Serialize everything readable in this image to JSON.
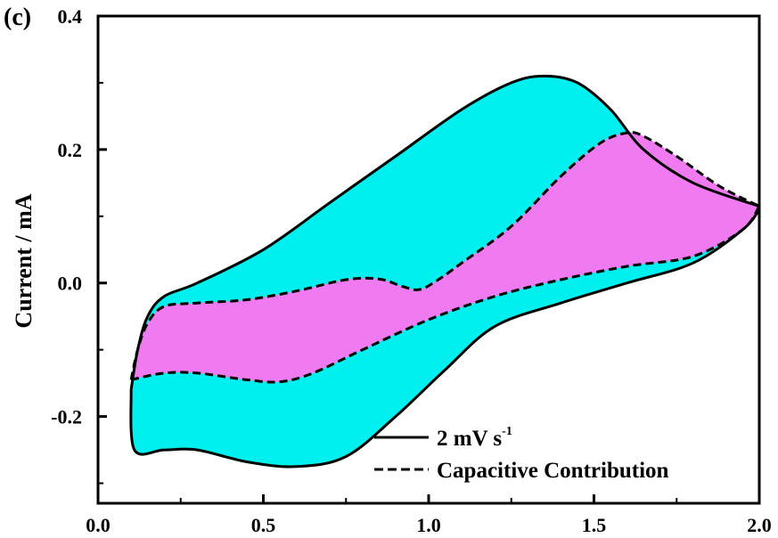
{
  "panel_label": "(c)",
  "chart_data": {
    "type": "area",
    "title": "",
    "xlabel": "",
    "ylabel": "Current / mA",
    "xlim": [
      0.0,
      2.0
    ],
    "ylim": [
      -0.33,
      0.4
    ],
    "x_ticks": [
      "0.0",
      "0.5",
      "1.0",
      "1.5",
      "2.0"
    ],
    "y_ticks": [
      "-0.2",
      "0.0",
      "0.2",
      "0.4"
    ],
    "grid": false,
    "legend_position": "bottom-right",
    "colors": {
      "total_fill": "#00f0f0",
      "capacitive_fill": "#f07af0",
      "line": "#000000"
    },
    "series": [
      {
        "name": "2 mV s⁻¹",
        "label_main": "2 mV s",
        "label_exponent": "-1",
        "style": "solid",
        "fill": "cyan",
        "upper": {
          "x": [
            0.1,
            0.12,
            0.15,
            0.2,
            0.3,
            0.5,
            0.7,
            0.9,
            1.1,
            1.25,
            1.35,
            1.45,
            1.55,
            1.65,
            1.8,
            2.0
          ],
          "y": [
            -0.16,
            -0.1,
            -0.05,
            -0.02,
            0.0,
            0.05,
            0.12,
            0.19,
            0.26,
            0.3,
            0.31,
            0.3,
            0.26,
            0.2,
            0.15,
            0.115
          ]
        },
        "lower": {
          "x": [
            0.1,
            0.11,
            0.2,
            0.3,
            0.45,
            0.6,
            0.75,
            0.9,
            1.05,
            1.2,
            1.4,
            1.6,
            1.8,
            1.95,
            2.0
          ],
          "y": [
            -0.16,
            -0.25,
            -0.25,
            -0.25,
            -0.268,
            -0.275,
            -0.26,
            -0.2,
            -0.13,
            -0.065,
            -0.03,
            0.0,
            0.03,
            0.08,
            0.11
          ]
        }
      },
      {
        "name": "Capacitive Contribution",
        "style": "dashed",
        "fill": "magenta",
        "upper": {
          "x": [
            0.1,
            0.12,
            0.15,
            0.2,
            0.3,
            0.45,
            0.6,
            0.75,
            0.85,
            0.92,
            0.97,
            1.02,
            1.1,
            1.25,
            1.4,
            1.52,
            1.6,
            1.65,
            1.75,
            1.88,
            2.0
          ],
          "y": [
            -0.145,
            -0.1,
            -0.06,
            -0.035,
            -0.03,
            -0.025,
            -0.012,
            0.005,
            0.006,
            -0.005,
            -0.01,
            0.002,
            0.03,
            0.085,
            0.16,
            0.21,
            0.225,
            0.22,
            0.19,
            0.145,
            0.115
          ]
        },
        "lower": {
          "x": [
            0.1,
            0.2,
            0.3,
            0.45,
            0.55,
            0.65,
            0.8,
            1.0,
            1.2,
            1.4,
            1.6,
            1.8,
            1.95,
            2.0
          ],
          "y": [
            -0.145,
            -0.135,
            -0.135,
            -0.145,
            -0.148,
            -0.135,
            -0.1,
            -0.055,
            -0.02,
            0.005,
            0.025,
            0.04,
            0.08,
            0.115
          ]
        }
      }
    ]
  }
}
